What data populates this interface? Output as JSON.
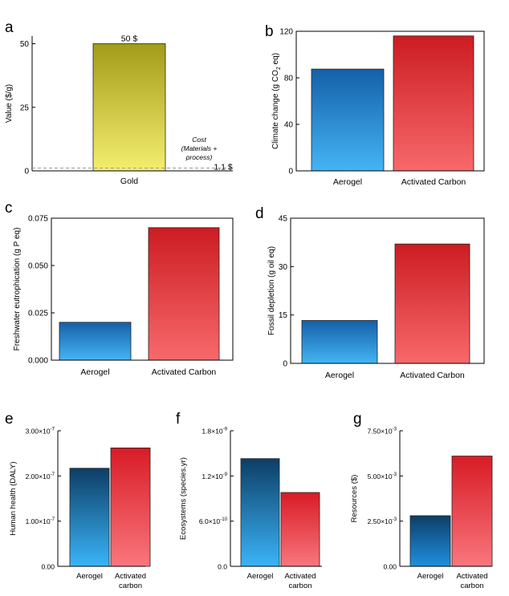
{
  "chart_data": [
    {
      "panel": "a",
      "type": "bar",
      "title": "",
      "xlabel": "",
      "ylabel": "Value ($/g)",
      "categories": [
        "Gold"
      ],
      "values": [
        50
      ],
      "ylim": [
        0,
        53
      ],
      "yticks": [
        0,
        25,
        50
      ],
      "ytick_labels": [
        "0",
        "25",
        "50"
      ],
      "value_labels": [
        "50 $"
      ],
      "reference_line": {
        "value": 1.1,
        "label": "1.1 $",
        "annotation": [
          "Cost",
          "(Materials +",
          "process)"
        ]
      },
      "colors": [
        [
          "#a39b1a",
          "#f4ee6e"
        ]
      ]
    },
    {
      "panel": "b",
      "type": "bar",
      "title": "",
      "xlabel": "",
      "ylabel": "Climate change (g CO2 eq)",
      "ylabel_parts": [
        "Climate change (g CO",
        "2",
        " eq)"
      ],
      "categories": [
        "Aerogel",
        "Activated Carbon"
      ],
      "values": [
        87.5,
        116
      ],
      "ylim": [
        0,
        120
      ],
      "yticks": [
        0,
        40,
        80,
        120
      ],
      "ytick_labels": [
        "0",
        "40",
        "80",
        "120"
      ],
      "colors": [
        [
          "#1560a8",
          "#44b4f4"
        ],
        [
          "#cc1c22",
          "#f7696b"
        ]
      ]
    },
    {
      "panel": "c",
      "type": "bar",
      "title": "",
      "xlabel": "",
      "ylabel": "Freshwater eutrophication (g P eq)",
      "categories": [
        "Aerogel",
        "Activated Carbon"
      ],
      "values": [
        0.02,
        0.07
      ],
      "ylim": [
        0,
        0.075
      ],
      "yticks": [
        0,
        0.025,
        0.05,
        0.075
      ],
      "ytick_labels": [
        "0.000",
        "0.025",
        "0.050",
        "0.075"
      ],
      "colors": [
        [
          "#1560a8",
          "#44b4f4"
        ],
        [
          "#cc1c22",
          "#f7696b"
        ]
      ]
    },
    {
      "panel": "d",
      "type": "bar",
      "title": "",
      "xlabel": "",
      "ylabel": "Fossil depletion (g oil eq)",
      "categories": [
        "Aerogel",
        "Activated Carbon"
      ],
      "values": [
        13.3,
        37
      ],
      "ylim": [
        0,
        45
      ],
      "yticks": [
        0,
        15,
        30,
        45
      ],
      "ytick_labels": [
        "0",
        "15",
        "30",
        "45"
      ],
      "colors": [
        [
          "#1560a8",
          "#44b4f4"
        ],
        [
          "#cc1c22",
          "#f7696b"
        ]
      ]
    },
    {
      "panel": "e",
      "type": "bar",
      "title": "",
      "xlabel": "",
      "ylabel": "Human health (DALY)",
      "categories": [
        [
          "Aerogel"
        ],
        [
          "Activated",
          "carbon"
        ]
      ],
      "values": [
        2.17e-07,
        2.62e-07
      ],
      "ylim": [
        0,
        3e-07
      ],
      "yticks": [
        0,
        1e-07,
        2e-07,
        3e-07
      ],
      "ytick_labels": [
        [
          "0.00",
          ""
        ],
        [
          "1.00×10",
          "-7"
        ],
        [
          "2.00×10",
          "-7"
        ],
        [
          "3.00×10",
          "-7"
        ]
      ],
      "colors": [
        [
          "#0d3e66",
          "#3ab4f8"
        ],
        [
          "#d81c26",
          "#f9767d"
        ]
      ]
    },
    {
      "panel": "f",
      "type": "bar",
      "title": "",
      "xlabel": "",
      "ylabel": "Ecosystems (species.yr)",
      "categories": [
        [
          "Aerogel"
        ],
        [
          "Activated",
          "carbon"
        ]
      ],
      "values": [
        1.43e-09,
        9.8e-10
      ],
      "ylim": [
        0,
        1.8e-09
      ],
      "yticks": [
        0,
        6e-10,
        1.2e-09,
        1.8e-09
      ],
      "ytick_labels": [
        [
          "0.0",
          ""
        ],
        [
          "6.0×10",
          "-10"
        ],
        [
          "1.2×10",
          "-9"
        ],
        [
          "1.8×10",
          "-9"
        ]
      ],
      "colors": [
        [
          "#0d3e66",
          "#3ab4f8"
        ],
        [
          "#d81c26",
          "#f9767d"
        ]
      ]
    },
    {
      "panel": "g",
      "type": "bar",
      "title": "",
      "xlabel": "",
      "ylabel": "Resources ($)",
      "categories": [
        [
          "Aerogel"
        ],
        [
          "Activated",
          "carbon"
        ]
      ],
      "values": [
        0.0028,
        0.0061
      ],
      "ylim": [
        0,
        0.0075
      ],
      "yticks": [
        0,
        0.0025,
        0.005,
        0.0075
      ],
      "ytick_labels": [
        [
          "0.00",
          ""
        ],
        [
          "2.50×10",
          "-3"
        ],
        [
          "5.00×10",
          "-3"
        ],
        [
          "7.50×10",
          "-3"
        ]
      ],
      "colors": [
        [
          "#0d3e66",
          "#1e8fe0"
        ],
        [
          "#d81c26",
          "#f9767d"
        ]
      ]
    }
  ]
}
